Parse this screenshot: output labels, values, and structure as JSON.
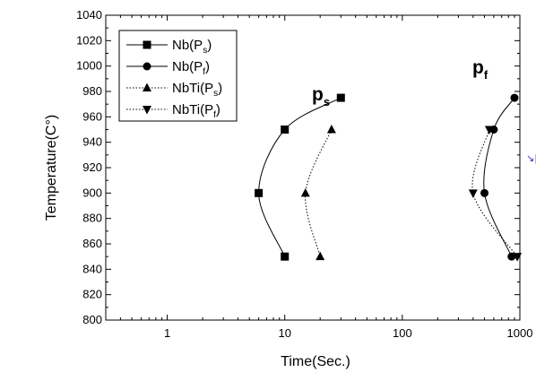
{
  "chart_data": {
    "type": "scatter",
    "title": "",
    "xlabel": "Time(Sec.)",
    "ylabel": "Temperature(C°)",
    "x_scale": "log",
    "xlim": [
      0.3,
      1000
    ],
    "ylim": [
      800,
      1040
    ],
    "x_ticks": [
      1,
      10,
      100,
      1000
    ],
    "x_tick_labels": [
      "1",
      "10",
      "100",
      "1000"
    ],
    "y_ticks": [
      800,
      820,
      840,
      860,
      880,
      900,
      920,
      940,
      960,
      980,
      1000,
      1020,
      1040
    ],
    "y_tick_labels": [
      "800",
      "820",
      "840",
      "860",
      "880",
      "900",
      "920",
      "940",
      "960",
      "980",
      "1000",
      "1020",
      "1040"
    ],
    "grid": false,
    "legend_position": "top-left",
    "series": [
      {
        "name": "Nb(Ps)",
        "name_main": "Nb(P",
        "name_sub": "s",
        "name_close": ")",
        "marker": "square",
        "line": "solid",
        "points": [
          [
            10,
            850
          ],
          [
            6,
            900
          ],
          [
            10,
            950
          ],
          [
            30,
            975
          ]
        ]
      },
      {
        "name": "Nb(Pf)",
        "name_main": "Nb(P",
        "name_sub": "f",
        "name_close": ")",
        "marker": "circle",
        "line": "solid",
        "points": [
          [
            850,
            850
          ],
          [
            500,
            900
          ],
          [
            600,
            950
          ],
          [
            900,
            975
          ]
        ]
      },
      {
        "name": "NbTi(Ps)",
        "name_main": "NbTi(P",
        "name_sub": "s",
        "name_close": ")",
        "marker": "triangle-up",
        "line": "dotted",
        "points": [
          [
            20,
            850
          ],
          [
            15,
            900
          ],
          [
            25,
            950
          ]
        ]
      },
      {
        "name": "NbTi(Pf)",
        "name_main": "NbTi(P",
        "name_sub": "f",
        "name_close": ")",
        "marker": "triangle-down",
        "line": "dotted",
        "points": [
          [
            950,
            850
          ],
          [
            400,
            900
          ],
          [
            550,
            950
          ]
        ]
      }
    ],
    "annotations": [
      {
        "main": "p",
        "sub": "s"
      },
      {
        "main": "p",
        "sub": "f"
      }
    ],
    "edge_mark": "↘||"
  }
}
